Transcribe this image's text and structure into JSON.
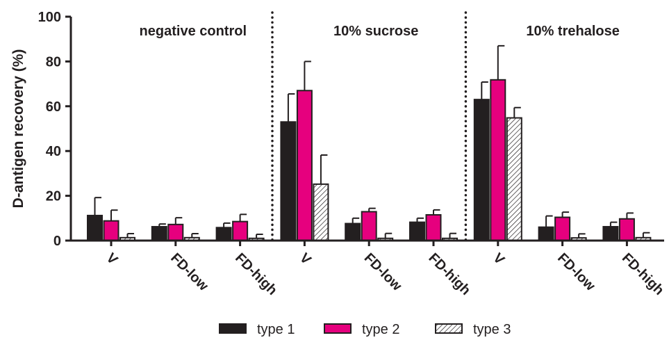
{
  "chart_data": {
    "type": "bar",
    "ylabel": "D-antigen recovery (%)",
    "ylim": [
      0,
      100
    ],
    "yticks": [
      0,
      20,
      40,
      60,
      80,
      100
    ],
    "grid": false,
    "legend_position": "bottom",
    "panels": [
      {
        "title": "negative control",
        "groups": [
          {
            "label": "V",
            "values": [
              11.2,
              8.8,
              1.3
            ],
            "errors": [
              8.0,
              4.8,
              1.8
            ]
          },
          {
            "label": "FD-low",
            "values": [
              6.2,
              7.2,
              1.3
            ],
            "errors": [
              1.2,
              3.0,
              1.8
            ]
          },
          {
            "label": "FD-high",
            "values": [
              5.8,
              8.5,
              1.0
            ],
            "errors": [
              2.0,
              3.2,
              1.8
            ]
          }
        ]
      },
      {
        "title": "10% sucrose",
        "groups": [
          {
            "label": "V",
            "values": [
              53.0,
              67.0,
              25.2
            ],
            "errors": [
              12.5,
              13.0,
              13.0
            ]
          },
          {
            "label": "FD-low",
            "values": [
              7.6,
              12.9,
              1.0
            ],
            "errors": [
              2.4,
              1.5,
              2.2
            ]
          },
          {
            "label": "FD-high",
            "values": [
              8.2,
              11.5,
              1.0
            ],
            "errors": [
              1.8,
              2.2,
              2.2
            ]
          }
        ]
      },
      {
        "title": "10% trehalose",
        "groups": [
          {
            "label": "V",
            "values": [
              63.0,
              71.8,
              54.8
            ],
            "errors": [
              7.8,
              15.2,
              4.6
            ]
          },
          {
            "label": "FD-low",
            "values": [
              6.0,
              10.4,
              1.2
            ],
            "errors": [
              5.0,
              2.3,
              1.8
            ]
          },
          {
            "label": "FD-high",
            "values": [
              6.2,
              9.7,
              1.3
            ],
            "errors": [
              2.0,
              2.6,
              2.2
            ]
          }
        ]
      }
    ],
    "series": [
      {
        "name": "type 1",
        "color": "#231f20",
        "fill": "solid"
      },
      {
        "name": "type 2",
        "color": "#e6007e",
        "fill": "solid"
      },
      {
        "name": "type 3",
        "color": "#ffffff",
        "fill": "hatched"
      }
    ]
  }
}
